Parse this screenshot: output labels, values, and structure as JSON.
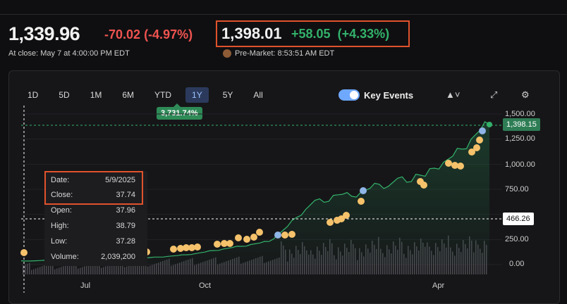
{
  "quote": {
    "close_price": "1,339.96",
    "close_change": "-70.02",
    "close_change_pct": "(-4.97%)",
    "close_label": "At close: May 7 at 4:00:00 PM EDT",
    "premarket_price": "1,398.01",
    "premarket_change": "+58.05",
    "premarket_change_pct": "(+4.33%)",
    "premarket_label": "Pre-Market: 8:53:51 AM EDT"
  },
  "ranges": [
    "1D",
    "5D",
    "1M",
    "6M",
    "YTD",
    "1Y",
    "5Y",
    "All"
  ],
  "active_range": "1Y",
  "range_return": "3,731.74%",
  "key_events_label": "Key Events",
  "tooltip": {
    "date_label": "Date:",
    "date": "5/9/2025",
    "close_label": "Close:",
    "close": "37.74",
    "open_label": "Open:",
    "open": "37.96",
    "high_label": "High:",
    "high": "38.79",
    "low_label": "Low:",
    "low": "37.28",
    "volume_label": "Volume:",
    "volume": "2,039,200"
  },
  "price_tag": "1,398.15",
  "hover_tag": "466.26",
  "colors": {
    "up": "#33b26b",
    "down": "#ef5350",
    "accent": "#6fa8ff",
    "event": "#f5c26b",
    "highlight": "#e0522c"
  },
  "chart_data": {
    "type": "area",
    "y_ticks": [
      "1,500.00",
      "1,250.00",
      "1,000.00",
      "750.00",
      "250.00",
      "0.00"
    ],
    "x_ticks": [
      "Jul",
      "Oct",
      "Apr"
    ],
    "ylim": [
      0,
      1500
    ],
    "series": [
      {
        "values": [
          38,
          36,
          40,
          42,
          39,
          44,
          46,
          45,
          52,
          50,
          55,
          58,
          64,
          62,
          70,
          75,
          82,
          90,
          98,
          110,
          125,
          140,
          155,
          170,
          182,
          200,
          215,
          230,
          300,
          380,
          470,
          550,
          640,
          620,
          690,
          700,
          680,
          720,
          760,
          800,
          780,
          860,
          820,
          900,
          880,
          960,
          1020,
          1080,
          1150,
          1250,
          1340,
          1398
        ]
      }
    ]
  }
}
